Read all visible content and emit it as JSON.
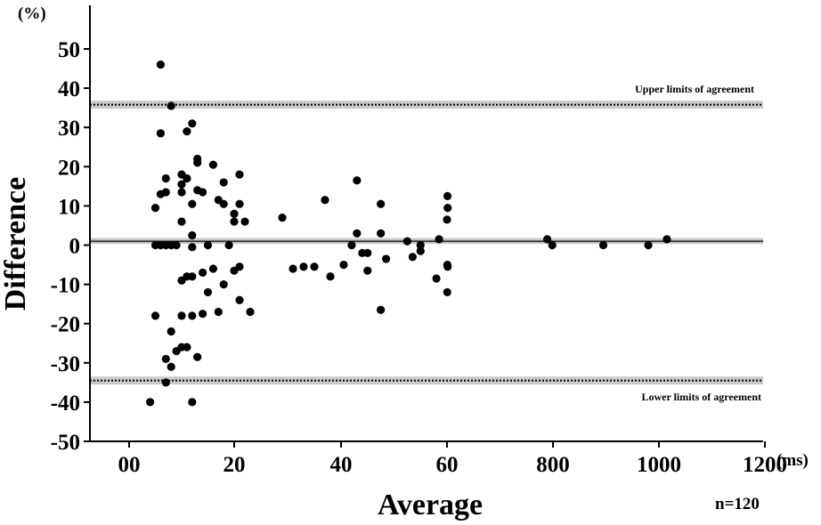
{
  "chart_data": {
    "type": "scatter",
    "ylabel": "Difference",
    "xlabel": "Average",
    "y_unit": "(%)",
    "x_unit": "(ms)",
    "n_label": "n=120",
    "ylim": [
      -50,
      50
    ],
    "yticks": [
      50,
      40,
      30,
      20,
      10,
      0,
      -10,
      -20,
      -30,
      -40,
      -50
    ],
    "xticks": [
      "00",
      "20",
      "40",
      "60",
      "800",
      "1000",
      "1200"
    ],
    "grid": false,
    "reference_lines": [
      {
        "name": "Upper limits of agreement",
        "value": 35.8,
        "style": "dotted",
        "band": [
          34.8,
          36.8
        ]
      },
      {
        "name": "mean",
        "value": 1.0,
        "style": "solid",
        "band": [
          0.3,
          1.8
        ]
      },
      {
        "name": "Lower limits of agreement",
        "value": -34.5,
        "style": "dotted",
        "band": [
          -35.5,
          -33.5
        ]
      }
    ],
    "points": [
      [
        4,
        -40
      ],
      [
        5,
        9.5
      ],
      [
        5,
        -18
      ],
      [
        5,
        0
      ],
      [
        6,
        46
      ],
      [
        6,
        28.5
      ],
      [
        6,
        13
      ],
      [
        6,
        0
      ],
      [
        7,
        17
      ],
      [
        7,
        13.5
      ],
      [
        7,
        0
      ],
      [
        7,
        -29
      ],
      [
        7,
        -35
      ],
      [
        8,
        35.5
      ],
      [
        8,
        0
      ],
      [
        8,
        -22
      ],
      [
        8,
        -31
      ],
      [
        9,
        0
      ],
      [
        9,
        -27
      ],
      [
        10,
        18
      ],
      [
        10,
        15.5
      ],
      [
        10,
        13.5
      ],
      [
        10,
        6
      ],
      [
        10,
        -9
      ],
      [
        10,
        -18
      ],
      [
        10,
        -26
      ],
      [
        11,
        29
      ],
      [
        11,
        17
      ],
      [
        11,
        -8
      ],
      [
        11,
        -26
      ],
      [
        12,
        31
      ],
      [
        12,
        10.5
      ],
      [
        12,
        2.5
      ],
      [
        12,
        -0.5
      ],
      [
        12,
        -8
      ],
      [
        12,
        -18
      ],
      [
        12,
        -40
      ],
      [
        13,
        22
      ],
      [
        13,
        21
      ],
      [
        13,
        14
      ],
      [
        13,
        -28.5
      ],
      [
        14,
        13.5
      ],
      [
        14,
        -7
      ],
      [
        14,
        -17.5
      ],
      [
        15,
        0
      ],
      [
        15,
        -12
      ],
      [
        16,
        20.5
      ],
      [
        16,
        -6
      ],
      [
        17,
        11.5
      ],
      [
        17,
        -17
      ],
      [
        18,
        16
      ],
      [
        18,
        10.5
      ],
      [
        18,
        -10
      ],
      [
        19,
        0
      ],
      [
        20,
        8
      ],
      [
        20,
        6
      ],
      [
        20,
        -6.5
      ],
      [
        21,
        18
      ],
      [
        21,
        10.5
      ],
      [
        21,
        -5.5
      ],
      [
        21,
        -14
      ],
      [
        22,
        6
      ],
      [
        23,
        -17
      ],
      [
        29,
        7
      ],
      [
        31,
        -6
      ],
      [
        33,
        -5.5
      ],
      [
        35,
        -5.5
      ],
      [
        37,
        11.5
      ],
      [
        38,
        -8
      ],
      [
        40.5,
        -5
      ],
      [
        42,
        0
      ],
      [
        43,
        16.5
      ],
      [
        43,
        3
      ],
      [
        44,
        -2
      ],
      [
        45,
        -2
      ],
      [
        45,
        -6.5
      ],
      [
        47.5,
        10.5
      ],
      [
        47.5,
        3
      ],
      [
        47.5,
        -16.5
      ],
      [
        48.5,
        -3.5
      ],
      [
        52.5,
        1
      ],
      [
        53.5,
        -3
      ],
      [
        55,
        0
      ],
      [
        55,
        -1.5
      ],
      [
        58,
        -8.5
      ],
      [
        58.5,
        1.5
      ],
      [
        60,
        6.5
      ],
      [
        61.5,
        -12
      ],
      [
        62.5,
        -5
      ],
      [
        63.5,
        12.5
      ],
      [
        64.5,
        9.5
      ],
      [
        64.5,
        -5.5
      ],
      [
        760,
        1.5
      ],
      [
        795,
        0
      ],
      [
        895,
        0
      ],
      [
        980,
        0
      ],
      [
        1015,
        1.5
      ]
    ],
    "annotations": [
      "Upper limits of agreement",
      "Lower limits of agreement"
    ]
  }
}
